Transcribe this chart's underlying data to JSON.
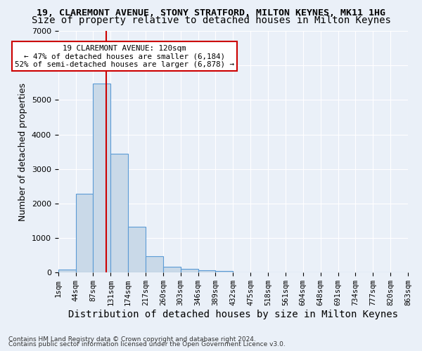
{
  "title1": "19, CLAREMONT AVENUE, STONY STRATFORD, MILTON KEYNES, MK11 1HG",
  "title2": "Size of property relative to detached houses in Milton Keynes",
  "xlabel": "Distribution of detached houses by size in Milton Keynes",
  "ylabel": "Number of detached properties",
  "bin_labels": [
    "1sqm",
    "44sqm",
    "87sqm",
    "131sqm",
    "174sqm",
    "217sqm",
    "260sqm",
    "303sqm",
    "346sqm",
    "389sqm",
    "432sqm",
    "475sqm",
    "518sqm",
    "561sqm",
    "604sqm",
    "648sqm",
    "691sqm",
    "734sqm",
    "777sqm",
    "820sqm",
    "863sqm"
  ],
  "bar_values": [
    80,
    2280,
    5480,
    3440,
    1320,
    470,
    160,
    100,
    70,
    50,
    0,
    0,
    0,
    0,
    0,
    0,
    0,
    0,
    0,
    0
  ],
  "bar_color": "#c9d9e8",
  "bar_edge_color": "#5b9bd5",
  "vline_color": "#cc0000",
  "ylim": [
    0,
    7000
  ],
  "annotation_text": "19 CLAREMONT AVENUE: 120sqm\n← 47% of detached houses are smaller (6,184)\n52% of semi-detached houses are larger (6,878) →",
  "annotation_box_color": "#ffffff",
  "annotation_box_edge": "#cc0000",
  "footnote1": "Contains HM Land Registry data © Crown copyright and database right 2024.",
  "footnote2": "Contains public sector information licensed under the Open Government Licence v3.0.",
  "bg_color": "#eaf0f8",
  "grid_color": "#ffffff",
  "title1_fontsize": 9.5,
  "title2_fontsize": 10,
  "tick_fontsize": 7.5,
  "ylabel_fontsize": 9,
  "xlabel_fontsize": 10
}
